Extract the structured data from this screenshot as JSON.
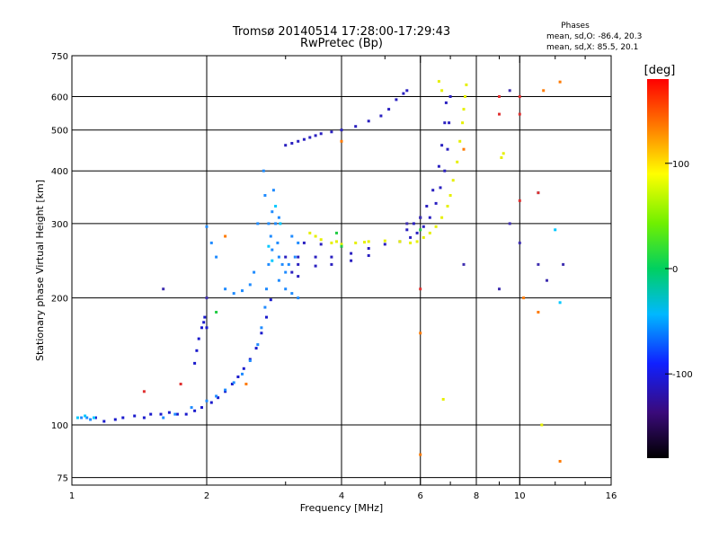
{
  "header": {
    "title": "Tromsø 20140514 17:28:00-17:29:43",
    "subtitle": "RwPretec (Bp)",
    "phases_label": "Phases",
    "phase_o": "mean, sd,O:  -86.4, 20.3",
    "phase_x": "mean, sd,X:   85.5, 20.1"
  },
  "chart_data": {
    "type": "scatter",
    "xlabel": "Frequency [MHz]",
    "ylabel": "Stationary phase Virtual Height [km]",
    "xscale": "log",
    "yscale": "log",
    "xlim": [
      1,
      16
    ],
    "ylim": [
      72,
      750
    ],
    "grid": true,
    "x_ticks": [
      1,
      2,
      4,
      6,
      8,
      10,
      16
    ],
    "x_tick_labels": [
      "1",
      "2",
      "4",
      "6",
      "8",
      "10",
      "16"
    ],
    "x_minor_ticks": [
      3,
      5,
      7,
      9,
      12,
      14
    ],
    "y_ticks": [
      75,
      100,
      200,
      300,
      400,
      500,
      600,
      750
    ],
    "y_tick_labels": [
      "75",
      "100",
      "200",
      "300",
      "400",
      "500",
      "600",
      "750"
    ],
    "colorbar": {
      "label": "[deg]",
      "range": [
        -180,
        180
      ],
      "ticks": [
        100,
        0,
        -100
      ],
      "tick_labels": [
        "100",
        "0",
        "-100"
      ]
    },
    "series": [
      {
        "color": "#1a1acc",
        "phase": -110,
        "points": [
          [
            1.13,
            104
          ],
          [
            1.18,
            102
          ],
          [
            1.25,
            103
          ],
          [
            1.3,
            104
          ],
          [
            1.38,
            105
          ],
          [
            1.45,
            104
          ],
          [
            1.5,
            106
          ],
          [
            1.58,
            106
          ],
          [
            1.65,
            107
          ],
          [
            1.72,
            106
          ],
          [
            1.8,
            106
          ],
          [
            1.88,
            108
          ],
          [
            1.95,
            110
          ],
          [
            2.05,
            113
          ],
          [
            2.12,
            116
          ],
          [
            2.2,
            120
          ],
          [
            2.28,
            125
          ],
          [
            2.35,
            130
          ],
          [
            2.42,
            136
          ],
          [
            2.5,
            143
          ],
          [
            2.58,
            152
          ],
          [
            2.65,
            165
          ],
          [
            2.72,
            180
          ],
          [
            2.78,
            198
          ],
          [
            1.95,
            170
          ],
          [
            1.97,
            175
          ],
          [
            1.98,
            180
          ],
          [
            2.0,
            170
          ],
          [
            1.92,
            160
          ],
          [
            1.9,
            150
          ],
          [
            1.88,
            140
          ]
        ]
      },
      {
        "color": "#1f8bff",
        "phase": -70,
        "points": [
          [
            1.05,
            104
          ],
          [
            1.08,
            104
          ],
          [
            1.1,
            103
          ],
          [
            1.6,
            104
          ],
          [
            1.7,
            106
          ],
          [
            1.85,
            110
          ],
          [
            2.0,
            114
          ],
          [
            2.1,
            117
          ],
          [
            2.2,
            121
          ],
          [
            2.3,
            126
          ],
          [
            2.4,
            132
          ],
          [
            2.5,
            142
          ],
          [
            2.6,
            155
          ],
          [
            2.65,
            170
          ],
          [
            2.7,
            190
          ],
          [
            2.72,
            210
          ],
          [
            2.75,
            240
          ],
          [
            2.78,
            280
          ],
          [
            2.8,
            320
          ],
          [
            2.82,
            360
          ],
          [
            2.85,
            300
          ],
          [
            2.88,
            270
          ],
          [
            2.9,
            250
          ],
          [
            2.95,
            240
          ],
          [
            3.0,
            230
          ],
          [
            2.68,
            400
          ],
          [
            2.7,
            350
          ],
          [
            2.75,
            300
          ],
          [
            2.8,
            260
          ],
          [
            2.9,
            220
          ],
          [
            3.0,
            210
          ],
          [
            3.1,
            205
          ],
          [
            3.2,
            200
          ],
          [
            3.05,
            240
          ],
          [
            3.15,
            250
          ],
          [
            2.2,
            210
          ],
          [
            2.3,
            205
          ],
          [
            2.4,
            208
          ],
          [
            2.5,
            215
          ],
          [
            2.55,
            230
          ],
          [
            2.05,
            270
          ],
          [
            2.0,
            295
          ],
          [
            2.1,
            250
          ],
          [
            3.1,
            280
          ],
          [
            3.2,
            270
          ],
          [
            2.6,
            300
          ],
          [
            2.9,
            310
          ]
        ]
      },
      {
        "color": "#2a20c0",
        "phase": -105,
        "points": [
          [
            3.0,
            250
          ],
          [
            3.2,
            250
          ],
          [
            3.5,
            250
          ],
          [
            3.8,
            250
          ],
          [
            4.2,
            255
          ],
          [
            4.6,
            262
          ],
          [
            5.0,
            268
          ],
          [
            5.4,
            272
          ],
          [
            5.7,
            278
          ],
          [
            5.9,
            285
          ],
          [
            6.1,
            295
          ],
          [
            6.3,
            310
          ],
          [
            6.5,
            335
          ],
          [
            6.65,
            365
          ],
          [
            6.8,
            400
          ],
          [
            6.9,
            450
          ],
          [
            6.95,
            520
          ],
          [
            7.0,
            600
          ],
          [
            3.2,
            240
          ],
          [
            3.5,
            238
          ],
          [
            3.8,
            240
          ],
          [
            4.2,
            245
          ],
          [
            4.6,
            252
          ],
          [
            3.3,
            270
          ],
          [
            3.6,
            268
          ],
          [
            4.0,
            265
          ],
          [
            3.1,
            230
          ],
          [
            3.2,
            225
          ],
          [
            6.0,
            310
          ],
          [
            6.2,
            330
          ],
          [
            6.4,
            360
          ],
          [
            6.6,
            410
          ],
          [
            6.7,
            460
          ],
          [
            6.8,
            520
          ],
          [
            6.85,
            580
          ],
          [
            5.8,
            300
          ],
          [
            5.6,
            290
          ],
          [
            3.2,
            470
          ],
          [
            3.4,
            480
          ],
          [
            3.6,
            490
          ],
          [
            3.8,
            495
          ],
          [
            4.0,
            500
          ],
          [
            4.3,
            510
          ],
          [
            4.6,
            525
          ],
          [
            4.9,
            540
          ],
          [
            5.1,
            560
          ],
          [
            5.3,
            590
          ],
          [
            5.5,
            610
          ],
          [
            5.6,
            620
          ],
          [
            3.0,
            460
          ],
          [
            3.1,
            465
          ],
          [
            3.3,
            475
          ],
          [
            3.5,
            485
          ]
        ]
      },
      {
        "color": "#e6f000",
        "phase": 95,
        "points": [
          [
            3.4,
            285
          ],
          [
            3.6,
            275
          ],
          [
            3.8,
            270
          ],
          [
            4.0,
            268
          ],
          [
            4.3,
            270
          ],
          [
            4.6,
            272
          ],
          [
            5.0,
            273
          ],
          [
            5.4,
            272
          ],
          [
            5.7,
            270
          ],
          [
            5.9,
            272
          ],
          [
            6.1,
            278
          ],
          [
            6.3,
            285
          ],
          [
            6.5,
            295
          ],
          [
            6.7,
            310
          ],
          [
            6.9,
            330
          ],
          [
            7.0,
            350
          ],
          [
            7.1,
            380
          ],
          [
            7.25,
            420
          ],
          [
            7.35,
            470
          ],
          [
            7.45,
            520
          ],
          [
            7.5,
            560
          ],
          [
            7.55,
            600
          ],
          [
            7.6,
            640
          ],
          [
            3.5,
            280
          ],
          [
            3.9,
            272
          ],
          [
            4.5,
            271
          ],
          [
            6.6,
            652
          ],
          [
            6.7,
            620
          ],
          [
            9.1,
            430
          ],
          [
            9.2,
            440
          ],
          [
            6.75,
            115
          ],
          [
            11.2,
            100
          ]
        ]
      },
      {
        "color": "#00c8ff",
        "phase": -40,
        "points": [
          [
            1.03,
            104
          ],
          [
            1.07,
            105
          ],
          [
            1.12,
            104
          ],
          [
            2.85,
            330
          ],
          [
            2.92,
            300
          ],
          [
            2.75,
            265
          ],
          [
            2.8,
            245
          ],
          [
            11.0,
            355
          ],
          [
            12.0,
            290
          ],
          [
            12.3,
            195
          ]
        ]
      },
      {
        "color": "#ff7a00",
        "phase": 150,
        "points": [
          [
            11.3,
            620
          ],
          [
            12.3,
            650
          ],
          [
            6.0,
            165
          ],
          [
            6.0,
            85
          ],
          [
            10.2,
            200
          ],
          [
            11.0,
            185
          ],
          [
            12.3,
            82
          ],
          [
            7.5,
            450
          ],
          [
            2.45,
            125
          ],
          [
            2.2,
            280
          ],
          [
            4.0,
            470
          ]
        ]
      },
      {
        "color": "#e03030",
        "phase": 175,
        "points": [
          [
            9.0,
            600
          ],
          [
            10.0,
            600
          ],
          [
            9.0,
            545
          ],
          [
            10.0,
            545
          ],
          [
            11.0,
            355
          ],
          [
            10.0,
            340
          ],
          [
            6.0,
            210
          ],
          [
            1.75,
            125
          ],
          [
            1.45,
            120
          ]
        ]
      },
      {
        "color": "#3f2fb0",
        "phase": -95,
        "points": [
          [
            9.5,
            620
          ],
          [
            9.5,
            300
          ],
          [
            10.0,
            270
          ],
          [
            11.0,
            240
          ],
          [
            11.5,
            220
          ],
          [
            12.5,
            240
          ],
          [
            9.0,
            210
          ],
          [
            6.0,
            310
          ],
          [
            5.6,
            300
          ],
          [
            1.6,
            210
          ],
          [
            2.0,
            200
          ],
          [
            7.5,
            240
          ]
        ]
      },
      {
        "color": "#22cc44",
        "phase": 5,
        "points": [
          [
            4.0,
            265
          ],
          [
            3.9,
            285
          ],
          [
            6.0,
            290
          ],
          [
            2.1,
            185
          ]
        ]
      }
    ]
  }
}
